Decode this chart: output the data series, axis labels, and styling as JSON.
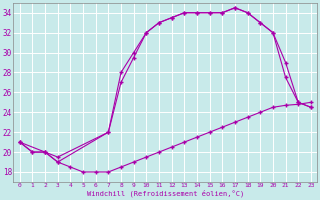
{
  "xlabel": "Windchill (Refroidissement éolien,°C)",
  "bg_color": "#c8eaea",
  "line_color": "#aa00aa",
  "grid_color": "#ffffff",
  "xlim": [
    -0.5,
    23.5
  ],
  "ylim": [
    17,
    35
  ],
  "yticks": [
    18,
    20,
    22,
    24,
    26,
    28,
    30,
    32,
    34
  ],
  "xticks": [
    0,
    1,
    2,
    3,
    4,
    5,
    6,
    7,
    8,
    9,
    10,
    11,
    12,
    13,
    14,
    15,
    16,
    17,
    18,
    19,
    20,
    21,
    22,
    23
  ],
  "line1_x": [
    0,
    1,
    2,
    3,
    4,
    5,
    6,
    7,
    8,
    9,
    10,
    11,
    12,
    13,
    14,
    15,
    16,
    17,
    18,
    19,
    20,
    21,
    22,
    23
  ],
  "line1_y": [
    21,
    20,
    20,
    19,
    18.5,
    18,
    18,
    18,
    18.5,
    19,
    19.5,
    20,
    20.5,
    21,
    21.5,
    22,
    22.5,
    23,
    23.5,
    24,
    24.5,
    24.7,
    24.8,
    25
  ],
  "line2_x": [
    0,
    2,
    3,
    7,
    8,
    9,
    10,
    11,
    12,
    13,
    14,
    15,
    16,
    17,
    18,
    19,
    20,
    21,
    22,
    23
  ],
  "line2_y": [
    21,
    20,
    19.5,
    22,
    27,
    29.5,
    32,
    33,
    33.5,
    34,
    34,
    34,
    34,
    34.5,
    34,
    33,
    32,
    27.5,
    25,
    24.5
  ],
  "line3_x": [
    0,
    1,
    2,
    3,
    7,
    8,
    9,
    10,
    11,
    12,
    13,
    14,
    15,
    16,
    17,
    18,
    19,
    20,
    21,
    22,
    23
  ],
  "line3_y": [
    21,
    20,
    20,
    19,
    22,
    28,
    30,
    32,
    33,
    33.5,
    34,
    34,
    34,
    34,
    34.5,
    34,
    33,
    32,
    29,
    25,
    24.5
  ]
}
